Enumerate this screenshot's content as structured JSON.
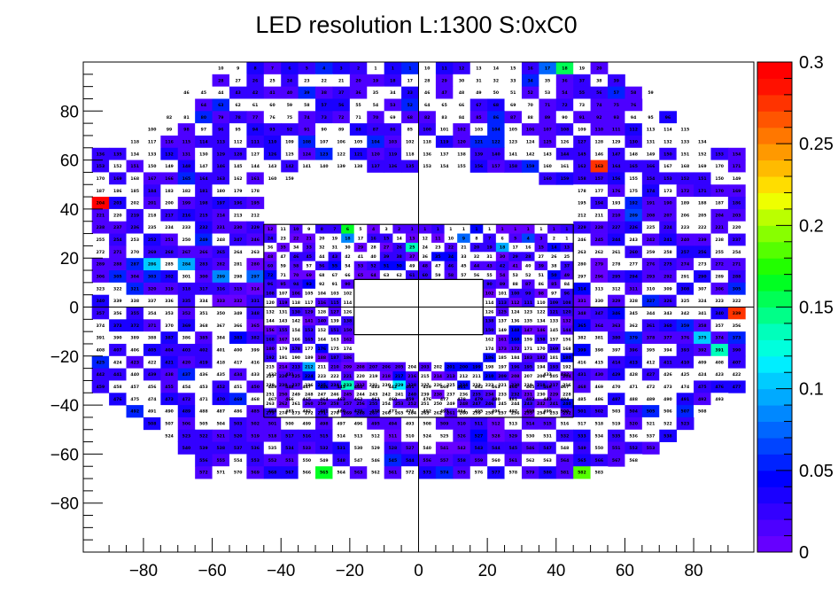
{
  "chart_data": {
    "type": "heatmap",
    "title": "LED resolution L:1300 S:0xC0",
    "xlabel": "",
    "ylabel": "",
    "xlim": [
      -97.5,
      97.5
    ],
    "ylim": [
      -100,
      100
    ],
    "x_ticks": [
      -80,
      -60,
      -40,
      -20,
      0,
      20,
      40,
      60,
      80
    ],
    "y_ticks": [
      -80,
      -60,
      -40,
      -20,
      0,
      20,
      40,
      60,
      80
    ],
    "grid": false,
    "colorbar": {
      "position": "right",
      "range": [
        0,
        0.3
      ],
      "ticks": [
        "0",
        "0.05",
        "0.1",
        "0.15",
        "0.2",
        "0.25",
        "0.3"
      ],
      "palette": [
        "#6600ff",
        "#4d00ff",
        "#3300ff",
        "#1a00ff",
        "#0000ff",
        "#0022ff",
        "#0044ff",
        "#0066ff",
        "#0088ff",
        "#00aaff",
        "#00ccff",
        "#00eeff",
        "#00ffdd",
        "#00ffbb",
        "#00ff88",
        "#00ff55",
        "#00ff22",
        "#22ff00",
        "#55ff00",
        "#88ff00",
        "#bbff00",
        "#eeff00",
        "#ffdd00",
        "#ffbb00",
        "#ff9900",
        "#ff7700",
        "#ff5500",
        "#ff3300",
        "#ff1100",
        "#ff0000"
      ]
    },
    "outer_cell_size": 5,
    "inner_cell_size": 3.75,
    "outer_rows": [
      {
        "y": 97.5,
        "x_from": -57.5,
        "x_to": 52.5,
        "id_start": 10,
        "id_mode": "mirror"
      },
      {
        "y": 92.5,
        "x_from": -57.5,
        "x_to": 57.5,
        "id_start": 28,
        "id_mode": "mirror"
      },
      {
        "y": 87.5,
        "x_from": -67.5,
        "x_to": 67.5,
        "id_start": 46,
        "id_mode": "mirror"
      },
      {
        "y": 82.5,
        "x_from": -62.5,
        "x_to": 62.5,
        "id_start": 64,
        "id_mode": "mirror"
      },
      {
        "y": 77.5,
        "x_from": -72.5,
        "x_to": 72.5,
        "id_start": 82,
        "id_mode": "mirror"
      },
      {
        "y": 72.5,
        "x_from": -77.5,
        "x_to": 77.5,
        "id_start": 100,
        "id_mode": "mirror"
      },
      {
        "y": 67.5,
        "x_from": -82.5,
        "x_to": 82.5,
        "id_start": 118,
        "id_mode": "mirror"
      },
      {
        "y": 62.5,
        "x_from": -92.5,
        "x_to": 92.5,
        "id_start": 136,
        "id_mode": "mirror"
      },
      {
        "y": 57.5,
        "x_from": -92.5,
        "x_to": 92.5,
        "id_start": 153,
        "id_mode": "mirror"
      },
      {
        "y": 52.5,
        "x_from": -92.5,
        "x_to": -37.5,
        "id_start": 170,
        "id_mode": "seq"
      },
      {
        "y": 52.5,
        "x_from": 37.5,
        "x_to": 92.5,
        "id_start": 160,
        "id_mode": "seq"
      },
      {
        "y": 47.5,
        "x_from": -92.5,
        "x_to": -47.5,
        "id_start": 187,
        "id_mode": "seq"
      },
      {
        "y": 47.5,
        "x_from": 47.5,
        "x_to": 92.5,
        "id_start": 178,
        "id_mode": "seq"
      },
      {
        "y": 42.5,
        "x_from": -92.5,
        "x_to": -47.5,
        "id_start": 204,
        "id_mode": "seq"
      },
      {
        "y": 42.5,
        "x_from": 47.5,
        "x_to": 92.5,
        "id_start": 195,
        "id_mode": "seq"
      },
      {
        "y": 37.5,
        "x_from": -92.5,
        "x_to": -47.5,
        "id_start": 221,
        "id_mode": "seq"
      },
      {
        "y": 37.5,
        "x_from": 47.5,
        "x_to": 92.5,
        "id_start": 212,
        "id_mode": "seq"
      },
      {
        "y": 32.5,
        "x_from": -92.5,
        "x_to": -47.5,
        "id_start": 238,
        "id_mode": "seq"
      },
      {
        "y": 32.5,
        "x_from": 47.5,
        "x_to": 92.5,
        "id_start": 229,
        "id_mode": "seq"
      },
      {
        "y": 27.5,
        "x_from": -92.5,
        "x_to": -47.5,
        "id_start": 255,
        "id_mode": "seq"
      },
      {
        "y": 27.5,
        "x_from": 47.5,
        "x_to": 92.5,
        "id_start": 246,
        "id_mode": "seq"
      },
      {
        "y": 22.5,
        "x_from": -92.5,
        "x_to": -47.5,
        "id_start": 272,
        "id_mode": "seq"
      },
      {
        "y": 22.5,
        "x_from": 47.5,
        "x_to": 92.5,
        "id_start": 263,
        "id_mode": "seq"
      },
      {
        "y": 17.5,
        "x_from": -92.5,
        "x_to": -47.5,
        "id_start": 289,
        "id_mode": "seq"
      },
      {
        "y": 17.5,
        "x_from": 47.5,
        "x_to": 92.5,
        "id_start": 280,
        "id_mode": "seq"
      },
      {
        "y": 12.5,
        "x_from": -92.5,
        "x_to": -47.5,
        "id_start": 306,
        "id_mode": "seq"
      },
      {
        "y": 12.5,
        "x_from": 47.5,
        "x_to": 92.5,
        "id_start": 297,
        "id_mode": "seq"
      },
      {
        "y": 7.5,
        "x_from": -92.5,
        "x_to": -47.5,
        "id_start": 323,
        "id_mode": "seq"
      },
      {
        "y": 7.5,
        "x_from": 47.5,
        "x_to": 92.5,
        "id_start": 314,
        "id_mode": "seq"
      },
      {
        "y": 2.5,
        "x_from": -92.5,
        "x_to": -47.5,
        "id_start": 340,
        "id_mode": "seq"
      },
      {
        "y": 2.5,
        "x_from": 47.5,
        "x_to": 92.5,
        "id_start": 331,
        "id_mode": "seq"
      },
      {
        "y": -2.5,
        "x_from": -92.5,
        "x_to": -47.5,
        "id_start": 357,
        "id_mode": "seq"
      },
      {
        "y": -2.5,
        "x_from": 47.5,
        "x_to": 92.5,
        "id_start": 348,
        "id_mode": "seq"
      },
      {
        "y": -7.5,
        "x_from": -92.5,
        "x_to": -47.5,
        "id_start": 374,
        "id_mode": "seq"
      },
      {
        "y": -7.5,
        "x_from": 47.5,
        "x_to": 92.5,
        "id_start": 365,
        "id_mode": "seq"
      },
      {
        "y": -12.5,
        "x_from": -92.5,
        "x_to": -47.5,
        "id_start": 391,
        "id_mode": "seq"
      },
      {
        "y": -12.5,
        "x_from": 47.5,
        "x_to": 92.5,
        "id_start": 382,
        "id_mode": "seq"
      },
      {
        "y": -17.5,
        "x_from": -92.5,
        "x_to": -47.5,
        "id_start": 408,
        "id_mode": "seq"
      },
      {
        "y": -17.5,
        "x_from": 47.5,
        "x_to": 92.5,
        "id_start": 399,
        "id_mode": "seq"
      },
      {
        "y": -22.5,
        "x_from": -92.5,
        "x_to": -47.5,
        "id_start": 425,
        "id_mode": "seq"
      },
      {
        "y": -22.5,
        "x_from": 47.5,
        "x_to": 92.5,
        "id_start": 416,
        "id_mode": "seq"
      },
      {
        "y": -27.5,
        "x_from": -92.5,
        "x_to": -37.5,
        "id_start": 442,
        "id_mode": "seq"
      },
      {
        "y": -27.5,
        "x_from": 37.5,
        "x_to": 92.5,
        "id_start": 433,
        "id_mode": "seq"
      },
      {
        "y": -32.5,
        "x_from": -92.5,
        "x_to": 92.5,
        "id_start": 459,
        "id_mode": "mirror"
      },
      {
        "y": -37.5,
        "x_from": -87.5,
        "x_to": 87.5,
        "id_start": 476,
        "id_mode": "mirror"
      },
      {
        "y": -42.5,
        "x_from": -82.5,
        "x_to": 82.5,
        "id_start": 492,
        "id_mode": "mirror"
      },
      {
        "y": -47.5,
        "x_from": -77.5,
        "x_to": 77.5,
        "id_start": 508,
        "id_mode": "mirror"
      },
      {
        "y": -52.5,
        "x_from": -72.5,
        "x_to": 72.5,
        "id_start": 524,
        "id_mode": "mirror"
      },
      {
        "y": -57.5,
        "x_from": -67.5,
        "x_to": 67.5,
        "id_start": 540,
        "id_mode": "mirror"
      },
      {
        "y": -62.5,
        "x_from": -62.5,
        "x_to": 62.5,
        "id_start": 556,
        "id_mode": "mirror"
      },
      {
        "y": -67.5,
        "x_from": -62.5,
        "x_to": 52.5,
        "id_start": 572,
        "id_mode": "mirror"
      }
    ],
    "inner_rows": [
      {
        "y": 31.875,
        "x_from": -43.125,
        "x_to": 43.125,
        "id_start": 12
      },
      {
        "y": 28.125,
        "x_from": -43.125,
        "x_to": 43.125,
        "id_start": 24
      },
      {
        "y": 24.375,
        "x_from": -43.125,
        "x_to": 43.125,
        "id_start": 36
      },
      {
        "y": 20.625,
        "x_from": -43.125,
        "x_to": 43.125,
        "id_start": 48
      },
      {
        "y": 16.875,
        "x_from": -43.125,
        "x_to": 43.125,
        "id_start": 60
      },
      {
        "y": 13.125,
        "x_from": -43.125,
        "x_to": 43.125,
        "id_start": 72
      },
      {
        "y": 9.375,
        "x_from": -43.125,
        "x_to": -20.625,
        "id_start": 96
      },
      {
        "y": 9.375,
        "x_from": 20.625,
        "x_to": 43.125,
        "id_start": 90
      },
      {
        "y": 5.625,
        "x_from": -43.125,
        "x_to": -20.625,
        "id_start": 108
      },
      {
        "y": 5.625,
        "x_from": 20.625,
        "x_to": 43.125,
        "id_start": 102
      },
      {
        "y": 1.875,
        "x_from": -43.125,
        "x_to": -20.625,
        "id_start": 120
      },
      {
        "y": 1.875,
        "x_from": 20.625,
        "x_to": 43.125,
        "id_start": 114
      },
      {
        "y": -1.875,
        "x_from": -43.125,
        "x_to": -20.625,
        "id_start": 132
      },
      {
        "y": -1.875,
        "x_from": 20.625,
        "x_to": 43.125,
        "id_start": 126
      },
      {
        "y": -5.625,
        "x_from": -43.125,
        "x_to": -20.625,
        "id_start": 144
      },
      {
        "y": -5.625,
        "x_from": 20.625,
        "x_to": 43.125,
        "id_start": 138
      },
      {
        "y": -9.375,
        "x_from": -43.125,
        "x_to": -20.625,
        "id_start": 156
      },
      {
        "y": -9.375,
        "x_from": 20.625,
        "x_to": 43.125,
        "id_start": 150
      },
      {
        "y": -13.125,
        "x_from": -43.125,
        "x_to": -20.625,
        "id_start": 168
      },
      {
        "y": -13.125,
        "x_from": 20.625,
        "x_to": 43.125,
        "id_start": 162
      },
      {
        "y": -16.875,
        "x_from": -43.125,
        "x_to": -20.625,
        "id_start": 180
      },
      {
        "y": -16.875,
        "x_from": 20.625,
        "x_to": 43.125,
        "id_start": 174
      },
      {
        "y": -20.625,
        "x_from": -43.125,
        "x_to": -20.625,
        "id_start": 192
      },
      {
        "y": -20.625,
        "x_from": 20.625,
        "x_to": 43.125,
        "id_start": 186
      },
      {
        "y": -24.375,
        "x_from": -43.125,
        "x_to": 43.125,
        "id_start": 215
      },
      {
        "y": -28.125,
        "x_from": -43.125,
        "x_to": 43.125,
        "id_start": 227
      },
      {
        "y": -31.875,
        "x_from": -43.125,
        "x_to": 43.125,
        "id_start": 239
      },
      {
        "y": -35.625,
        "x_from": -43.125,
        "x_to": 43.125,
        "id_start": 251
      },
      {
        "y": -39.375,
        "x_from": -43.125,
        "x_to": 43.125,
        "id_start": 263
      },
      {
        "y": -43.125,
        "x_from": -43.125,
        "x_to": 43.125,
        "id_start": 275
      }
    ],
    "highlights": [
      {
        "x": -92.5,
        "y": 42.5,
        "value": 0.29
      },
      {
        "x": -27.5,
        "y": 42.5,
        "value": 0.27
      },
      {
        "x": 52.5,
        "y": 57.5,
        "value": 0.275
      },
      {
        "x": 92.5,
        "y": -2.5,
        "value": 0.27
      },
      {
        "x": -27.5,
        "y": -67.5,
        "value": 0.16
      },
      {
        "x": 47.5,
        "y": -67.5,
        "value": 0.18
      },
      {
        "x": 37.5,
        "y": 97.5,
        "value": 0.07
      },
      {
        "x": 42.5,
        "y": 97.5,
        "value": 0.15
      },
      {
        "x": -20.625,
        "y": 31.875,
        "value": 0.16
      },
      {
        "x": -20.625,
        "y": 28.125,
        "value": 0.08
      },
      {
        "x": -1.875,
        "y": 24.375,
        "value": 0.13
      },
      {
        "x": -20.625,
        "y": -31.875,
        "value": 0.13
      },
      {
        "x": -5.625,
        "y": -31.875,
        "value": 0.11
      },
      {
        "x": -31.875,
        "y": -24.375,
        "value": 0.09
      },
      {
        "x": 82.5,
        "y": -12.5,
        "value": 0.1
      },
      {
        "x": 87.5,
        "y": -17.5,
        "value": 0.13
      },
      {
        "x": -77.5,
        "y": 17.5,
        "value": 0.1
      },
      {
        "x": -67.5,
        "y": 17.5,
        "value": 0.09
      },
      {
        "x": -57.5,
        "y": 12.5,
        "value": 0.08
      },
      {
        "x": -47.5,
        "y": 12.5,
        "value": 0.07
      },
      {
        "x": 62.5,
        "y": 37.5,
        "value": 0.065
      },
      {
        "x": -38.0,
        "y": -13.125,
        "value": 0.1
      },
      {
        "x": 13.125,
        "y": 28.125,
        "value": 0.07
      },
      {
        "x": 24.375,
        "y": 24.375,
        "value": 0.09
      },
      {
        "x": 31.875,
        "y": 28.125,
        "value": 0.06
      }
    ]
  }
}
